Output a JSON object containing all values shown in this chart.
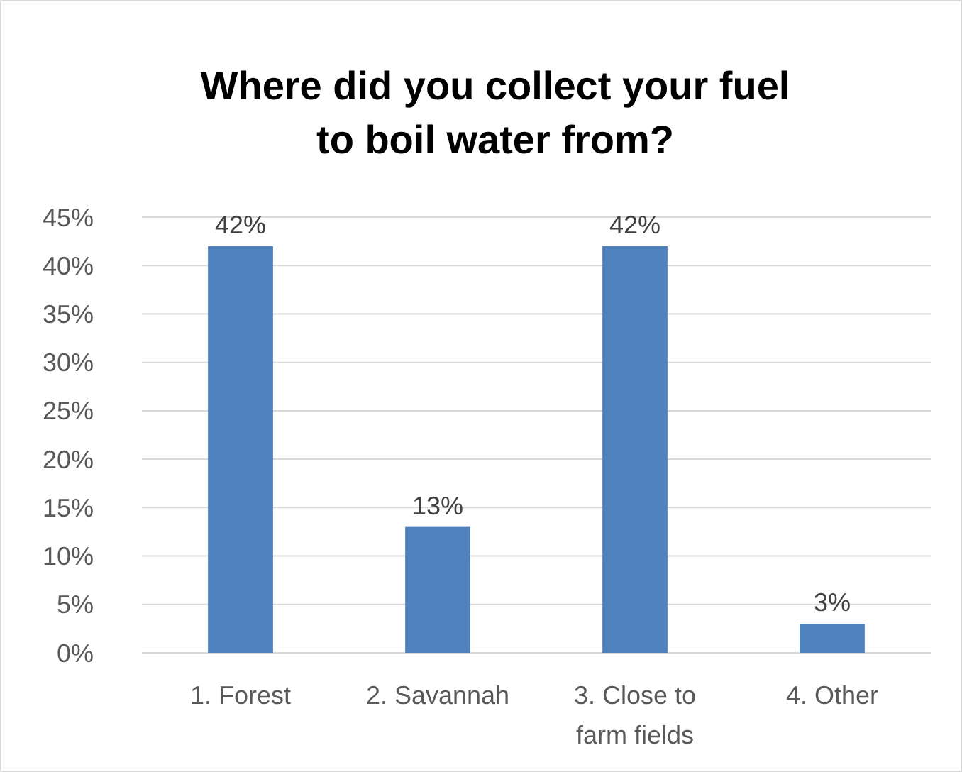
{
  "chart_data": {
    "type": "bar",
    "title": "Where did you collect your fuel to boil water from?",
    "categories": [
      "1. Forest",
      "2. Savannah",
      "3. Close to farm fields",
      "4. Other"
    ],
    "values": [
      42,
      13,
      42,
      3
    ],
    "color": "#4f81bd",
    "value_labels": [
      "42%",
      "13%",
      "42%",
      "3%"
    ],
    "ylim": [
      0,
      45
    ],
    "yticks": [
      {
        "value": 0,
        "label": "0%"
      },
      {
        "value": 5,
        "label": "5%"
      },
      {
        "value": 10,
        "label": "10%"
      },
      {
        "value": 15,
        "label": "15%"
      },
      {
        "value": 20,
        "label": "20%"
      },
      {
        "value": 25,
        "label": "25%"
      },
      {
        "value": 30,
        "label": "30%"
      },
      {
        "value": 35,
        "label": "35%"
      },
      {
        "value": 40,
        "label": "40%"
      },
      {
        "value": 45,
        "label": "45%"
      }
    ],
    "grid": "y"
  }
}
